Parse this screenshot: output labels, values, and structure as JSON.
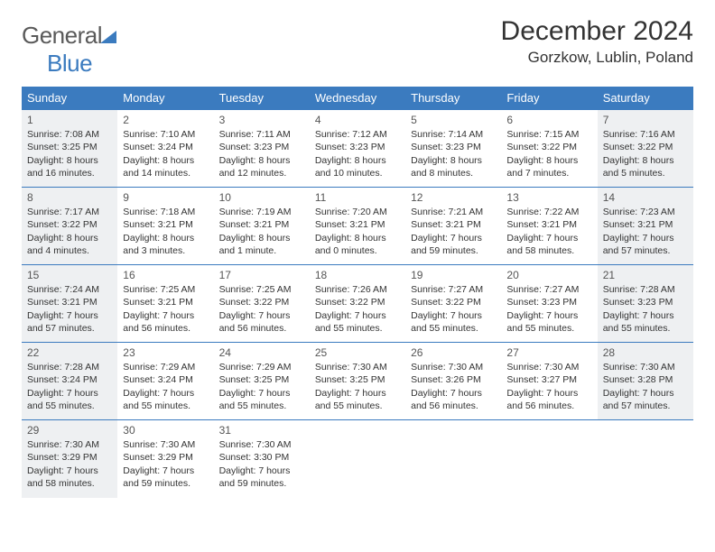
{
  "logo": {
    "text1": "General",
    "text2": "Blue",
    "color_gray": "#5a5a5a",
    "color_blue": "#3b7bbf"
  },
  "header": {
    "month_title": "December 2024",
    "location": "Gorzkow, Lublin, Poland"
  },
  "colors": {
    "header_bg": "#3b7bbf",
    "header_text": "#ffffff",
    "shaded_bg": "#eef0f2",
    "border": "#3b7bbf",
    "text": "#333333"
  },
  "day_names": [
    "Sunday",
    "Monday",
    "Tuesday",
    "Wednesday",
    "Thursday",
    "Friday",
    "Saturday"
  ],
  "weeks": [
    [
      {
        "num": "1",
        "shaded": true,
        "sunrise": "Sunrise: 7:08 AM",
        "sunset": "Sunset: 3:25 PM",
        "dl1": "Daylight: 8 hours",
        "dl2": "and 16 minutes."
      },
      {
        "num": "2",
        "shaded": false,
        "sunrise": "Sunrise: 7:10 AM",
        "sunset": "Sunset: 3:24 PM",
        "dl1": "Daylight: 8 hours",
        "dl2": "and 14 minutes."
      },
      {
        "num": "3",
        "shaded": false,
        "sunrise": "Sunrise: 7:11 AM",
        "sunset": "Sunset: 3:23 PM",
        "dl1": "Daylight: 8 hours",
        "dl2": "and 12 minutes."
      },
      {
        "num": "4",
        "shaded": false,
        "sunrise": "Sunrise: 7:12 AM",
        "sunset": "Sunset: 3:23 PM",
        "dl1": "Daylight: 8 hours",
        "dl2": "and 10 minutes."
      },
      {
        "num": "5",
        "shaded": false,
        "sunrise": "Sunrise: 7:14 AM",
        "sunset": "Sunset: 3:23 PM",
        "dl1": "Daylight: 8 hours",
        "dl2": "and 8 minutes."
      },
      {
        "num": "6",
        "shaded": false,
        "sunrise": "Sunrise: 7:15 AM",
        "sunset": "Sunset: 3:22 PM",
        "dl1": "Daylight: 8 hours",
        "dl2": "and 7 minutes."
      },
      {
        "num": "7",
        "shaded": true,
        "sunrise": "Sunrise: 7:16 AM",
        "sunset": "Sunset: 3:22 PM",
        "dl1": "Daylight: 8 hours",
        "dl2": "and 5 minutes."
      }
    ],
    [
      {
        "num": "8",
        "shaded": true,
        "sunrise": "Sunrise: 7:17 AM",
        "sunset": "Sunset: 3:22 PM",
        "dl1": "Daylight: 8 hours",
        "dl2": "and 4 minutes."
      },
      {
        "num": "9",
        "shaded": false,
        "sunrise": "Sunrise: 7:18 AM",
        "sunset": "Sunset: 3:21 PM",
        "dl1": "Daylight: 8 hours",
        "dl2": "and 3 minutes."
      },
      {
        "num": "10",
        "shaded": false,
        "sunrise": "Sunrise: 7:19 AM",
        "sunset": "Sunset: 3:21 PM",
        "dl1": "Daylight: 8 hours",
        "dl2": "and 1 minute."
      },
      {
        "num": "11",
        "shaded": false,
        "sunrise": "Sunrise: 7:20 AM",
        "sunset": "Sunset: 3:21 PM",
        "dl1": "Daylight: 8 hours",
        "dl2": "and 0 minutes."
      },
      {
        "num": "12",
        "shaded": false,
        "sunrise": "Sunrise: 7:21 AM",
        "sunset": "Sunset: 3:21 PM",
        "dl1": "Daylight: 7 hours",
        "dl2": "and 59 minutes."
      },
      {
        "num": "13",
        "shaded": false,
        "sunrise": "Sunrise: 7:22 AM",
        "sunset": "Sunset: 3:21 PM",
        "dl1": "Daylight: 7 hours",
        "dl2": "and 58 minutes."
      },
      {
        "num": "14",
        "shaded": true,
        "sunrise": "Sunrise: 7:23 AM",
        "sunset": "Sunset: 3:21 PM",
        "dl1": "Daylight: 7 hours",
        "dl2": "and 57 minutes."
      }
    ],
    [
      {
        "num": "15",
        "shaded": true,
        "sunrise": "Sunrise: 7:24 AM",
        "sunset": "Sunset: 3:21 PM",
        "dl1": "Daylight: 7 hours",
        "dl2": "and 57 minutes."
      },
      {
        "num": "16",
        "shaded": false,
        "sunrise": "Sunrise: 7:25 AM",
        "sunset": "Sunset: 3:21 PM",
        "dl1": "Daylight: 7 hours",
        "dl2": "and 56 minutes."
      },
      {
        "num": "17",
        "shaded": false,
        "sunrise": "Sunrise: 7:25 AM",
        "sunset": "Sunset: 3:22 PM",
        "dl1": "Daylight: 7 hours",
        "dl2": "and 56 minutes."
      },
      {
        "num": "18",
        "shaded": false,
        "sunrise": "Sunrise: 7:26 AM",
        "sunset": "Sunset: 3:22 PM",
        "dl1": "Daylight: 7 hours",
        "dl2": "and 55 minutes."
      },
      {
        "num": "19",
        "shaded": false,
        "sunrise": "Sunrise: 7:27 AM",
        "sunset": "Sunset: 3:22 PM",
        "dl1": "Daylight: 7 hours",
        "dl2": "and 55 minutes."
      },
      {
        "num": "20",
        "shaded": false,
        "sunrise": "Sunrise: 7:27 AM",
        "sunset": "Sunset: 3:23 PM",
        "dl1": "Daylight: 7 hours",
        "dl2": "and 55 minutes."
      },
      {
        "num": "21",
        "shaded": true,
        "sunrise": "Sunrise: 7:28 AM",
        "sunset": "Sunset: 3:23 PM",
        "dl1": "Daylight: 7 hours",
        "dl2": "and 55 minutes."
      }
    ],
    [
      {
        "num": "22",
        "shaded": true,
        "sunrise": "Sunrise: 7:28 AM",
        "sunset": "Sunset: 3:24 PM",
        "dl1": "Daylight: 7 hours",
        "dl2": "and 55 minutes."
      },
      {
        "num": "23",
        "shaded": false,
        "sunrise": "Sunrise: 7:29 AM",
        "sunset": "Sunset: 3:24 PM",
        "dl1": "Daylight: 7 hours",
        "dl2": "and 55 minutes."
      },
      {
        "num": "24",
        "shaded": false,
        "sunrise": "Sunrise: 7:29 AM",
        "sunset": "Sunset: 3:25 PM",
        "dl1": "Daylight: 7 hours",
        "dl2": "and 55 minutes."
      },
      {
        "num": "25",
        "shaded": false,
        "sunrise": "Sunrise: 7:30 AM",
        "sunset": "Sunset: 3:25 PM",
        "dl1": "Daylight: 7 hours",
        "dl2": "and 55 minutes."
      },
      {
        "num": "26",
        "shaded": false,
        "sunrise": "Sunrise: 7:30 AM",
        "sunset": "Sunset: 3:26 PM",
        "dl1": "Daylight: 7 hours",
        "dl2": "and 56 minutes."
      },
      {
        "num": "27",
        "shaded": false,
        "sunrise": "Sunrise: 7:30 AM",
        "sunset": "Sunset: 3:27 PM",
        "dl1": "Daylight: 7 hours",
        "dl2": "and 56 minutes."
      },
      {
        "num": "28",
        "shaded": true,
        "sunrise": "Sunrise: 7:30 AM",
        "sunset": "Sunset: 3:28 PM",
        "dl1": "Daylight: 7 hours",
        "dl2": "and 57 minutes."
      }
    ],
    [
      {
        "num": "29",
        "shaded": true,
        "sunrise": "Sunrise: 7:30 AM",
        "sunset": "Sunset: 3:29 PM",
        "dl1": "Daylight: 7 hours",
        "dl2": "and 58 minutes."
      },
      {
        "num": "30",
        "shaded": false,
        "sunrise": "Sunrise: 7:30 AM",
        "sunset": "Sunset: 3:29 PM",
        "dl1": "Daylight: 7 hours",
        "dl2": "and 59 minutes."
      },
      {
        "num": "31",
        "shaded": false,
        "sunrise": "Sunrise: 7:30 AM",
        "sunset": "Sunset: 3:30 PM",
        "dl1": "Daylight: 7 hours",
        "dl2": "and 59 minutes."
      },
      null,
      null,
      null,
      null
    ]
  ]
}
